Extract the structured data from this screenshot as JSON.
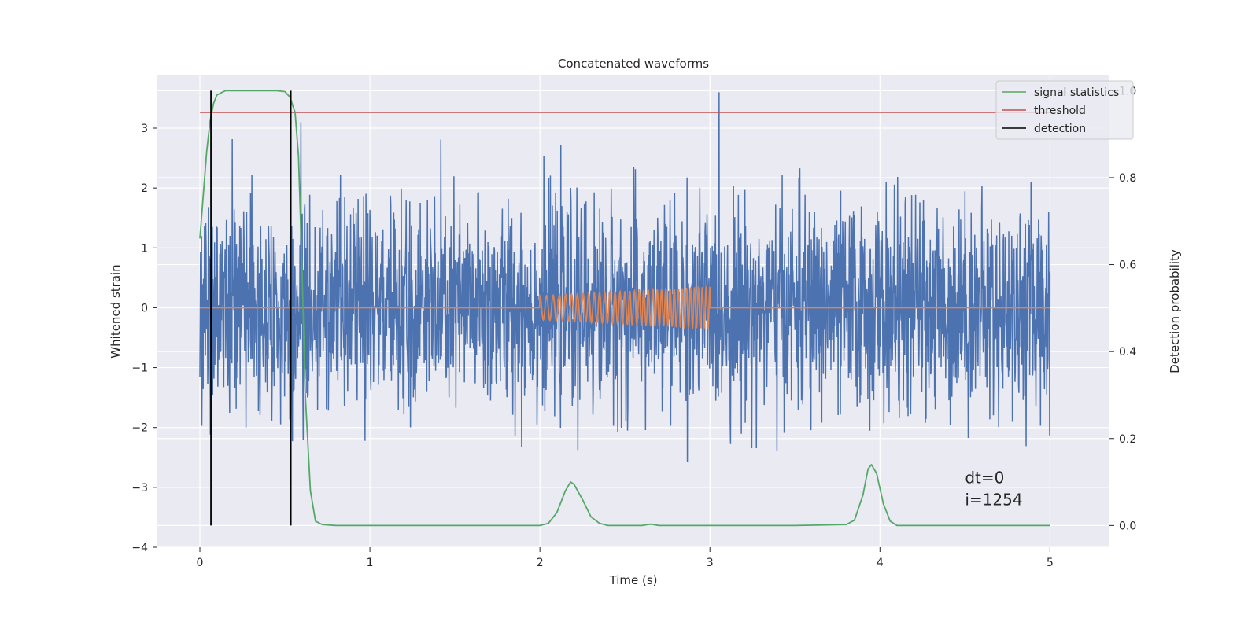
{
  "chart_data": {
    "type": "line",
    "title": "Concatenated waveforms",
    "xlabel": "Time (s)",
    "ylabel": "Whitened strain",
    "y2label": "Detection probability",
    "xlim": [
      -0.25,
      5.35
    ],
    "ylim": [
      -4.0,
      3.88
    ],
    "y2lim": [
      -0.05,
      1.035
    ],
    "xticks": [
      0,
      1,
      2,
      3,
      4,
      5
    ],
    "xtick_labels": [
      "0",
      "1",
      "2",
      "3",
      "4",
      "5"
    ],
    "yticks": [
      -4,
      -3,
      -2,
      -1,
      0,
      1,
      2,
      3
    ],
    "ytick_labels": [
      "−4",
      "−3",
      "−2",
      "−1",
      "0",
      "1",
      "2",
      "3"
    ],
    "y2ticks": [
      0.0,
      0.2,
      0.4,
      0.6,
      0.8,
      1.0
    ],
    "y2tick_labels": [
      "0.0",
      "0.2",
      "0.4",
      "0.6",
      "0.8",
      "1.0"
    ],
    "grid": true,
    "legend_position": "top-right",
    "legend": [
      "signal statistics",
      "threshold",
      "detection"
    ],
    "annotations": [
      "dt=0",
      "i=1254"
    ],
    "series": [
      {
        "kind": "strain-noise",
        "axis": "left",
        "color": "#4c72b0",
        "x_range": [
          0,
          5
        ],
        "spread_std": 0.85,
        "max_abs": 3.6
      },
      {
        "kind": "injected-chirp",
        "axis": "left",
        "color": "#dd8452",
        "x_range": [
          0,
          5
        ],
        "chirp_start": 2.0,
        "chirp_end": 3.0,
        "amplitude_start": 0.2,
        "amplitude_end": 0.35,
        "freq_start": 25,
        "freq_end": 45
      },
      {
        "name": "signal statistics",
        "axis": "right",
        "color": "#55a868",
        "x": [
          0.0,
          0.02,
          0.04,
          0.06,
          0.08,
          0.1,
          0.15,
          0.2,
          0.3,
          0.4,
          0.45,
          0.5,
          0.53,
          0.56,
          0.58,
          0.6,
          0.62,
          0.65,
          0.68,
          0.72,
          0.8,
          1.0,
          1.2,
          1.5,
          1.8,
          2.0,
          2.05,
          2.1,
          2.15,
          2.18,
          2.2,
          2.25,
          2.3,
          2.35,
          2.4,
          2.6,
          2.65,
          2.7,
          3.0,
          3.5,
          3.8,
          3.85,
          3.9,
          3.93,
          3.95,
          3.98,
          4.02,
          4.06,
          4.1,
          4.3,
          4.6,
          5.0
        ],
        "y": [
          0.66,
          0.76,
          0.86,
          0.93,
          0.97,
          0.99,
          1.0,
          1.0,
          1.0,
          1.0,
          1.0,
          0.998,
          0.985,
          0.95,
          0.85,
          0.6,
          0.3,
          0.08,
          0.01,
          0.002,
          0.0,
          0.0,
          0.0,
          0.0,
          0.0,
          0.0,
          0.005,
          0.03,
          0.08,
          0.1,
          0.095,
          0.06,
          0.02,
          0.005,
          0.0,
          0.0,
          0.003,
          0.0,
          0.0,
          0.0,
          0.002,
          0.012,
          0.07,
          0.13,
          0.14,
          0.12,
          0.05,
          0.01,
          0.0,
          0.0,
          0.0,
          0.0
        ]
      },
      {
        "name": "threshold",
        "axis": "right",
        "color": "#c44e52",
        "x": [
          0,
          5
        ],
        "y": [
          0.95,
          0.95
        ]
      },
      {
        "name": "detection",
        "axis": "right",
        "color": "#000000",
        "lines_x": [
          0.065,
          0.535
        ],
        "y_range": [
          0.0,
          1.0
        ]
      }
    ]
  }
}
